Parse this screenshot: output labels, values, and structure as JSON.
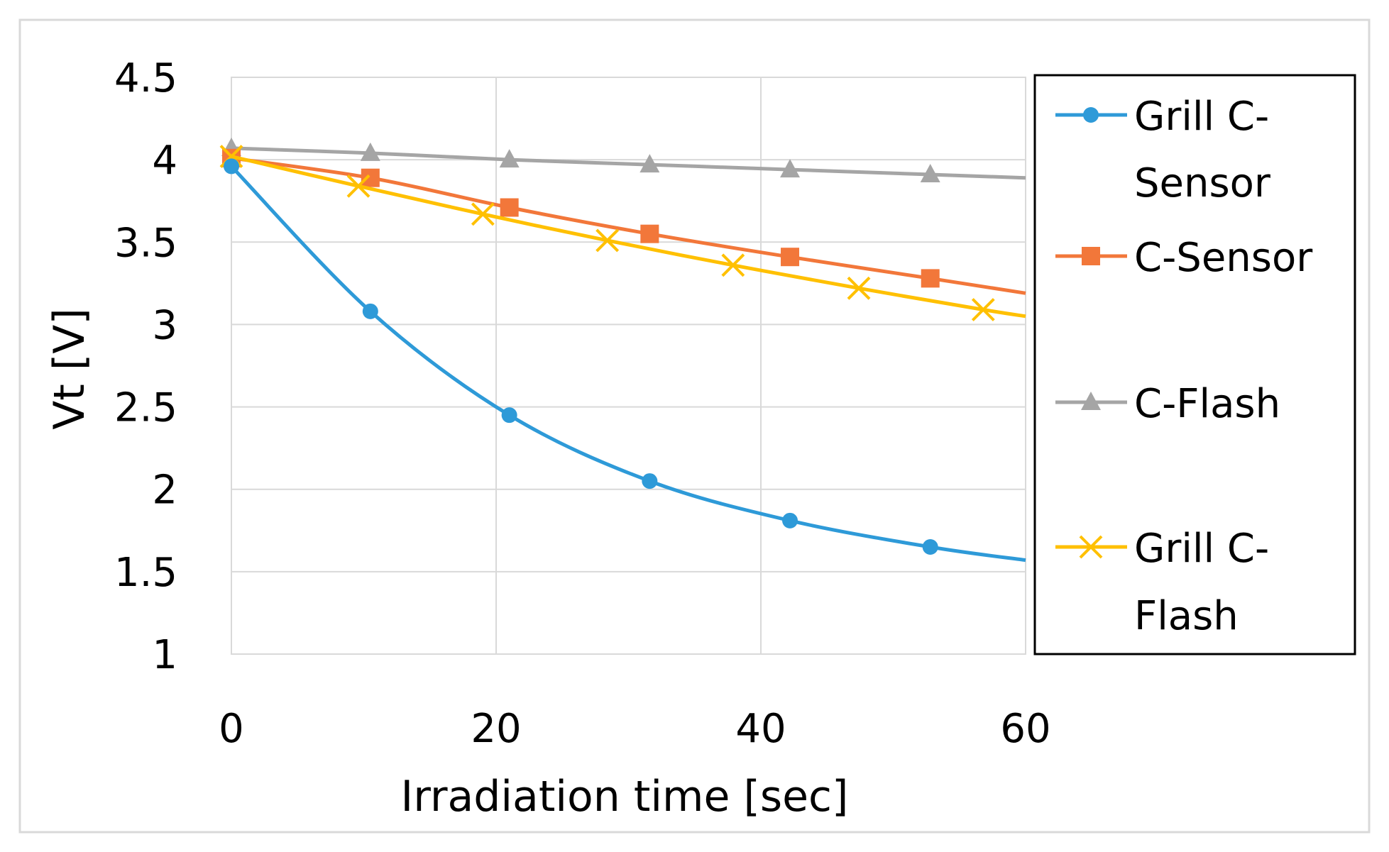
{
  "chart_data": {
    "type": "line",
    "title": "",
    "xlabel": "Irradiation time [sec]",
    "ylabel": "Vt [V]",
    "xlim": [
      0,
      60
    ],
    "ylim": [
      1,
      4.5
    ],
    "x_ticks": [
      "0",
      "20",
      "40",
      "60"
    ],
    "y_ticks": [
      "1",
      "1.5",
      "2",
      "2.5",
      "3",
      "3.5",
      "4",
      "4.5"
    ],
    "x_tick_values": [
      0,
      20,
      40,
      60
    ],
    "y_tick_values": [
      1,
      1.5,
      2,
      2.5,
      3,
      3.5,
      4,
      4.5
    ],
    "grid": true,
    "legend_position": "right",
    "series": [
      {
        "name": "Grill C-Sensor",
        "legend_lines": [
          "Grill C-",
          "Sensor"
        ],
        "color": "#2E9AD8",
        "marker": "circle",
        "x": [
          0,
          10.5,
          21,
          31.6,
          42.2,
          52.8,
          60
        ],
        "y": [
          3.96,
          3.08,
          2.45,
          2.05,
          1.81,
          1.65,
          1.57
        ],
        "markers_at": [
          0,
          10.5,
          21,
          31.6,
          42.2,
          52.8
        ]
      },
      {
        "name": "C-Sensor",
        "legend_lines": [
          "C-Sensor"
        ],
        "color": "#F2773A",
        "marker": "square",
        "x": [
          0,
          10.5,
          21,
          31.6,
          42.2,
          52.8,
          60
        ],
        "y": [
          4.01,
          3.89,
          3.71,
          3.55,
          3.41,
          3.28,
          3.19
        ],
        "markers_at": [
          0,
          10.5,
          21,
          31.6,
          42.2,
          52.8
        ]
      },
      {
        "name": "C-Flash",
        "legend_lines": [
          "C-Flash"
        ],
        "color": "#A5A5A5",
        "marker": "triangle",
        "x": [
          0,
          10.5,
          21,
          31.6,
          42.2,
          52.8,
          60
        ],
        "y": [
          4.07,
          4.04,
          4.0,
          3.97,
          3.94,
          3.91,
          3.89
        ],
        "markers_at": [
          0,
          10.5,
          21,
          31.6,
          42.2,
          52.8
        ]
      },
      {
        "name": "Grill C-Flash",
        "legend_lines": [
          "Grill C-",
          "Flash"
        ],
        "color": "#FFC000",
        "marker": "x",
        "x": [
          0,
          9.6,
          19,
          28.4,
          37.9,
          47.4,
          56.8,
          60
        ],
        "y": [
          4.02,
          3.84,
          3.67,
          3.51,
          3.36,
          3.22,
          3.09,
          3.05
        ],
        "markers_at": [
          0,
          9.6,
          19,
          28.4,
          37.9,
          47.4,
          56.8
        ]
      }
    ]
  }
}
